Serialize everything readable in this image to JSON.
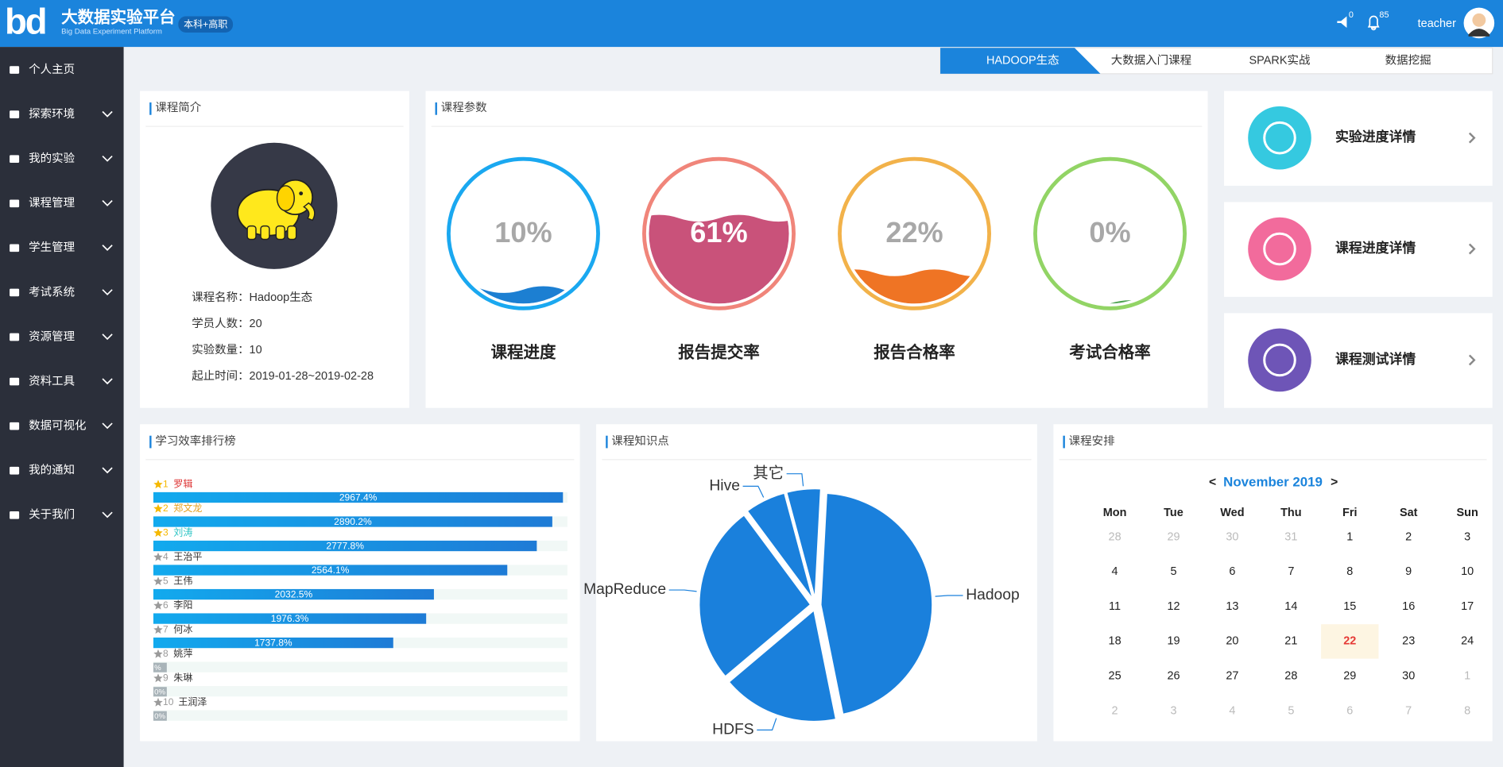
{
  "header": {
    "logo": "bd",
    "title": "大数据实验平台",
    "subtitle": "Big Data Experiment Platform",
    "badge": "本科+高职",
    "message_count": 0,
    "notice_count": 85,
    "user": "teacher"
  },
  "sidebar": [
    "个人主页",
    "探索环境",
    "我的实验",
    "课程管理",
    "学生管理",
    "考试系统",
    "资源管理",
    "资料工具",
    "数据可视化",
    "我的通知",
    "关于我们"
  ],
  "tabs": [
    "HADOOP生态",
    "大数据入门课程",
    "SPARK实战",
    "数据挖掘"
  ],
  "course_intro": {
    "title": "课程简介",
    "fields": [
      {
        "label": "课程名称：",
        "value": "Hadoop生态"
      },
      {
        "label": "学员人数：",
        "value": 20
      },
      {
        "label": "实验数量：",
        "value": 10
      },
      {
        "label": "起止时间：",
        "value": "2019-01-28~2019-02-28"
      }
    ]
  },
  "chart_data": [
    {
      "type": "gauge",
      "title": "课程参数",
      "categories": [
        "课程进度",
        "报告提交率",
        "报告合格率",
        "考试合格率"
      ],
      "values": [
        10,
        61,
        22,
        0
      ],
      "value_labels": [
        "10%",
        "61%",
        "22%",
        "0%"
      ],
      "ylim": [
        0,
        100
      ],
      "colors": [
        "#1aa8f0",
        "#f0857a",
        "#f2b24a",
        "#92d465"
      ],
      "fill_colors": [
        "#1c7fd2",
        "#c9527a",
        "#ef7424",
        "#4ea352"
      ]
    },
    {
      "type": "bar",
      "orientation": "horizontal",
      "title": "学习效率排行榜",
      "ranks": [
        1,
        2,
        3,
        4,
        5,
        6,
        7,
        8,
        9,
        10
      ],
      "categories": [
        "罗辑",
        "郑文龙",
        "刘涛",
        "王治平",
        "王伟",
        "李阳",
        "何冰",
        "姚萍",
        "朱琳",
        "王润泽"
      ],
      "values": [
        2967.4,
        2890.2,
        2777.8,
        2564.1,
        2032.5,
        1976.3,
        1737.8,
        0,
        0,
        0
      ],
      "value_labels": [
        "2967.4%",
        "2890.2%",
        "2777.8%",
        "2564.1%",
        "2032.5%",
        "1976.3%",
        "1737.8%",
        "%",
        "0%",
        "0%"
      ],
      "xlim": [
        0,
        3000
      ],
      "color": "#1a8fe0"
    },
    {
      "type": "pie",
      "title": "课程知识点",
      "categories": [
        "Hadoop",
        "HDFS",
        "MapReduce",
        "Hive",
        "其它"
      ],
      "values": [
        46,
        17,
        26,
        6,
        5
      ],
      "color": "#1a80dc"
    }
  ],
  "detail_cards": [
    "实验进度详情",
    "课程进度详情",
    "课程测试详情"
  ],
  "calendar": {
    "title": "课程安排",
    "prev": "<",
    "month": "November 2019",
    "next": ">",
    "weekdays": [
      "Mon",
      "Tue",
      "Wed",
      "Thu",
      "Fri",
      "Sat",
      "Sun"
    ],
    "weeks": [
      [
        28,
        29,
        30,
        31,
        1,
        2,
        3
      ],
      [
        4,
        5,
        6,
        7,
        8,
        9,
        10
      ],
      [
        11,
        12,
        13,
        14,
        15,
        16,
        17
      ],
      [
        18,
        19,
        20,
        21,
        22,
        23,
        24
      ],
      [
        25,
        26,
        27,
        28,
        29,
        30,
        1
      ],
      [
        2,
        3,
        4,
        5,
        6,
        7,
        8
      ]
    ],
    "today": 22
  }
}
